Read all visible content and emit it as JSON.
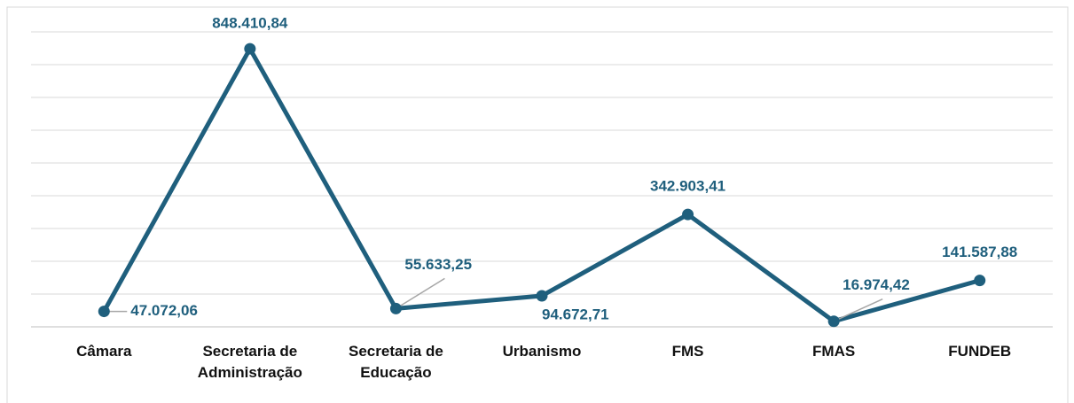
{
  "chart_data": {
    "type": "line",
    "categories": [
      "Câmara",
      "Secretaria de Administração",
      "Secretaria de Educação",
      "Urbanismo",
      "FMS",
      "FMAS",
      "FUNDEB"
    ],
    "series": [
      {
        "color": "#1f5f7d",
        "values": [
          47072.06,
          848410.84,
          55633.25,
          94672.71,
          342903.41,
          16974.42,
          141587.88
        ],
        "value_labels": [
          "47.072,06",
          "848.410,84",
          "55.633,25",
          "94.672,71",
          "342.903,41",
          "16.974,42",
          "141.587,88"
        ]
      }
    ],
    "ylim": [
      0,
      900000
    ],
    "yticks": [
      0,
      100000,
      200000,
      300000,
      400000,
      500000,
      600000,
      700000,
      800000,
      900000
    ],
    "grid": true
  }
}
